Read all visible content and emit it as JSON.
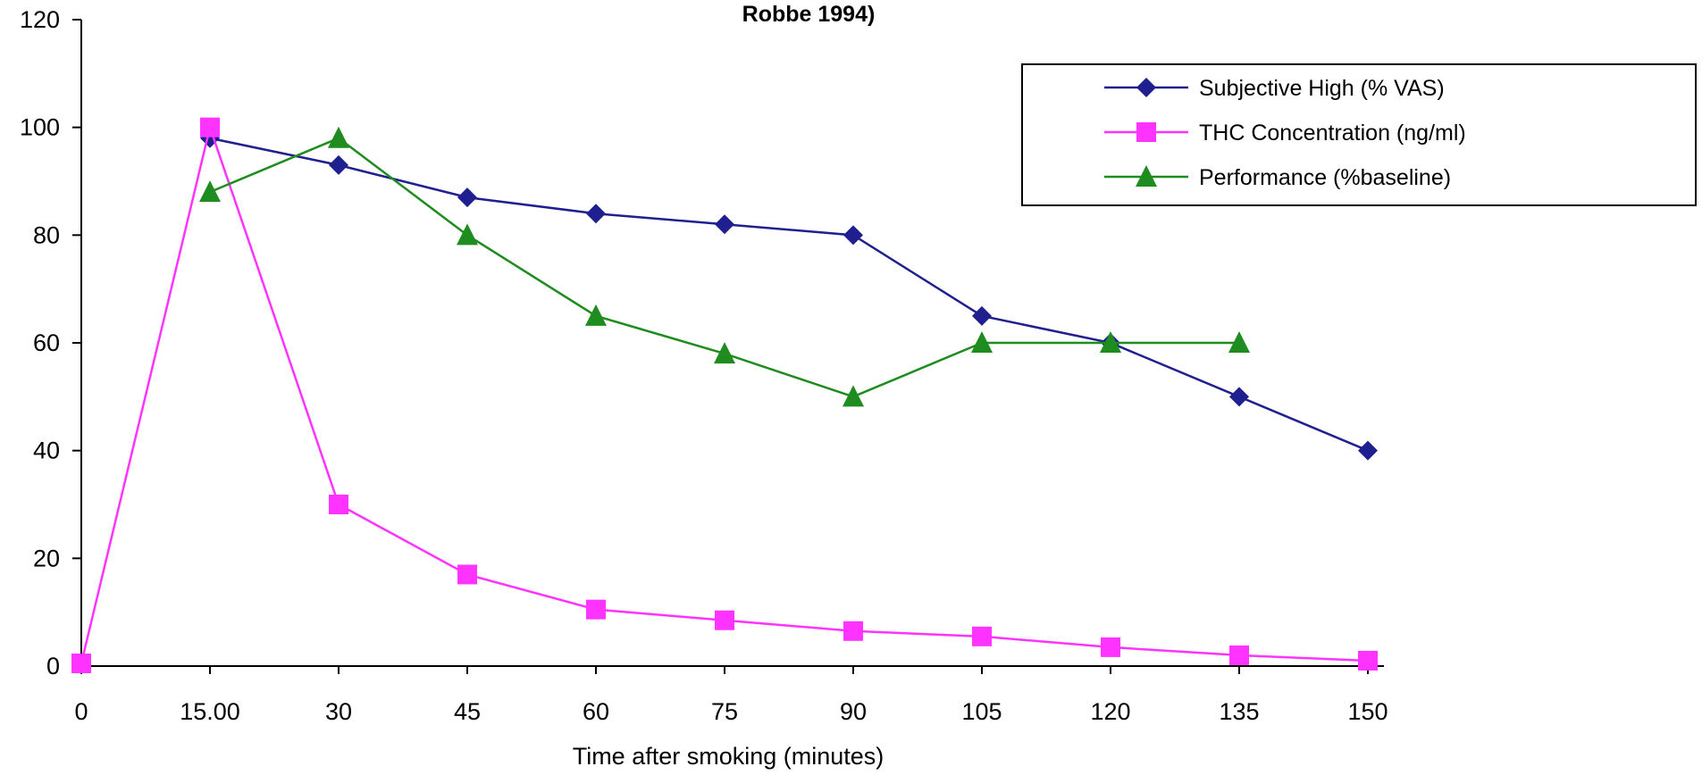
{
  "chart_data": {
    "type": "line",
    "title": "Robbe 1994)",
    "xlabel": "Time after smoking (minutes)",
    "ylabel": "",
    "categories": [
      "0",
      "15.00",
      "30",
      "45",
      "60",
      "75",
      "90",
      "105",
      "120",
      "135",
      "150"
    ],
    "y_ticks": [
      "0",
      "20",
      "40",
      "60",
      "80",
      "100",
      "120"
    ],
    "ylim": [
      0,
      120
    ],
    "grid": false,
    "legend_position": "top-right",
    "series": [
      {
        "name": "Subjective High (% VAS)",
        "color": "#1f1f8f",
        "marker": "diamond",
        "values": [
          null,
          98,
          93,
          87,
          84,
          82,
          80,
          65,
          60,
          50,
          40
        ]
      },
      {
        "name": "THC Concentration (ng/ml)",
        "color": "#ff33ff",
        "marker": "square",
        "values": [
          0.5,
          100,
          30,
          17,
          10.5,
          8.5,
          6.5,
          5.5,
          3.5,
          2,
          1
        ]
      },
      {
        "name": "Performance (%baseline)",
        "color": "#1e8c1e",
        "marker": "triangle",
        "values": [
          null,
          88,
          98,
          80,
          65,
          58,
          50,
          60,
          60,
          60,
          null
        ]
      }
    ]
  }
}
